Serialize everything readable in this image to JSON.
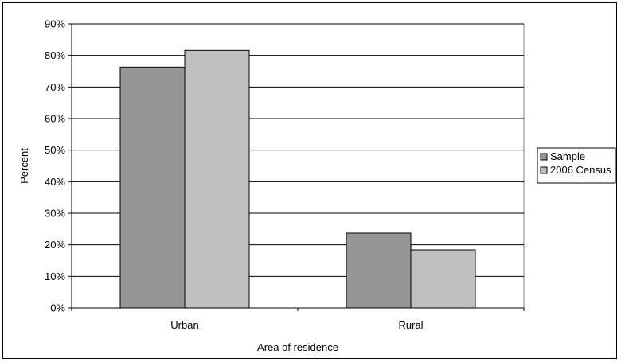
{
  "chart_data": {
    "type": "bar",
    "categories": [
      "Urban",
      "Rural"
    ],
    "series": [
      {
        "name": "Sample",
        "values": [
          76.3,
          23.7
        ],
        "color": "#969696"
      },
      {
        "name": "2006 Census",
        "values": [
          81.6,
          18.4
        ],
        "color": "#c0c0c0"
      }
    ],
    "xlabel": "Area of residence",
    "ylabel": "Percent",
    "ylim": [
      0,
      90
    ],
    "yticks": [
      "0%",
      "10%",
      "20%",
      "30%",
      "40%",
      "50%",
      "60%",
      "70%",
      "80%",
      "90%"
    ],
    "grid": true,
    "legend_position": "right"
  }
}
